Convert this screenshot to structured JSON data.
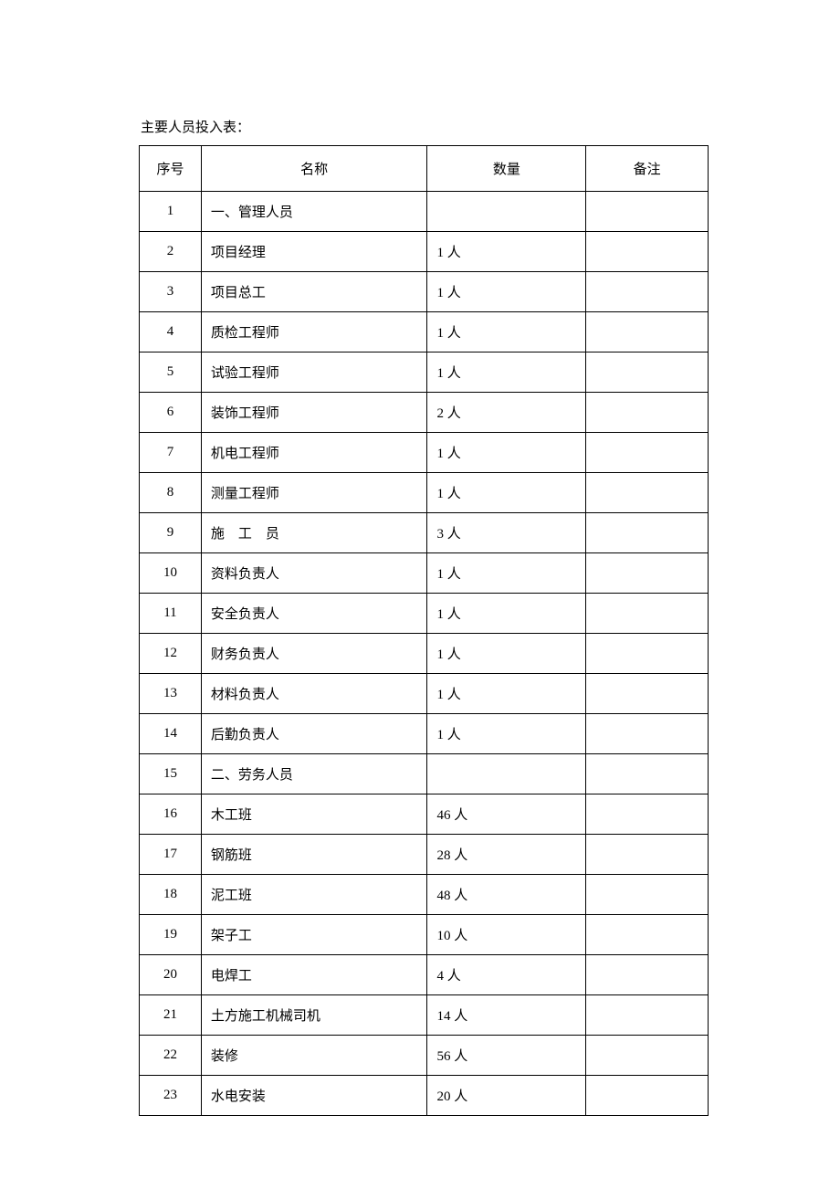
{
  "title": "主要人员投入表：",
  "table": {
    "columns": [
      {
        "key": "seq",
        "label": "序号",
        "class": "col-seq"
      },
      {
        "key": "name",
        "label": "名称",
        "class": "col-name"
      },
      {
        "key": "qty",
        "label": "数量",
        "class": "col-qty"
      },
      {
        "key": "remark",
        "label": "备注",
        "class": "col-remark"
      }
    ],
    "rows": [
      {
        "seq": "1",
        "name": "一、管理人员",
        "qty": "",
        "remark": ""
      },
      {
        "seq": "2",
        "name": "项目经理",
        "qty": "1 人",
        "remark": ""
      },
      {
        "seq": "3",
        "name": "项目总工",
        "qty": "1 人",
        "remark": ""
      },
      {
        "seq": "4",
        "name": "质检工程师",
        "qty": "1 人",
        "remark": ""
      },
      {
        "seq": "5",
        "name": "试验工程师",
        "qty": "1 人",
        "remark": ""
      },
      {
        "seq": "6",
        "name": "装饰工程师",
        "qty": "2 人",
        "remark": ""
      },
      {
        "seq": "7",
        "name": "机电工程师",
        "qty": "1 人",
        "remark": ""
      },
      {
        "seq": "8",
        "name": "测量工程师",
        "qty": "1 人",
        "remark": ""
      },
      {
        "seq": "9",
        "name": "施　工　员",
        "qty": "3 人",
        "remark": ""
      },
      {
        "seq": "10",
        "name": "资料负责人",
        "qty": "1 人",
        "remark": ""
      },
      {
        "seq": "11",
        "name": "安全负责人",
        "qty": "1 人",
        "remark": ""
      },
      {
        "seq": "12",
        "name": "财务负责人",
        "qty": "1 人",
        "remark": ""
      },
      {
        "seq": "13",
        "name": "材料负责人",
        "qty": "1 人",
        "remark": ""
      },
      {
        "seq": "14",
        "name": "后勤负责人",
        "qty": "1 人",
        "remark": ""
      },
      {
        "seq": "15",
        "name": "二、劳务人员",
        "qty": "",
        "remark": ""
      },
      {
        "seq": "16",
        "name": "木工班",
        "qty": "46 人",
        "remark": ""
      },
      {
        "seq": "17",
        "name": "钢筋班",
        "qty": "28 人",
        "remark": ""
      },
      {
        "seq": "18",
        "name": "泥工班",
        "qty": "48 人",
        "remark": ""
      },
      {
        "seq": "19",
        "name": "架子工",
        "qty": "10 人",
        "remark": ""
      },
      {
        "seq": "20",
        "name": "电焊工",
        "qty": "4 人",
        "remark": ""
      },
      {
        "seq": "21",
        "name": "土方施工机械司机",
        "qty": "14 人",
        "remark": ""
      },
      {
        "seq": "22",
        "name": "装修",
        "qty": "56 人",
        "remark": ""
      },
      {
        "seq": "23",
        "name": "水电安装",
        "qty": "20 人",
        "remark": ""
      }
    ]
  }
}
